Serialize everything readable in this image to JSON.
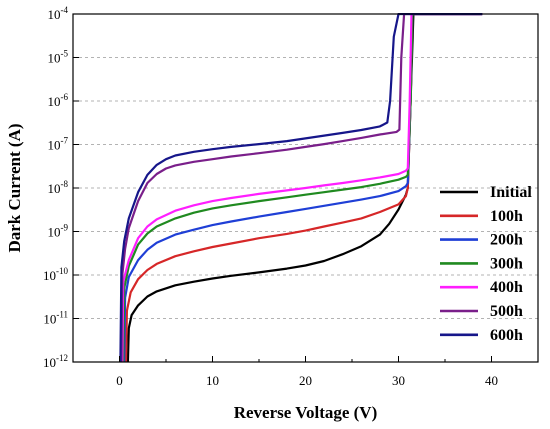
{
  "chart_data": {
    "type": "line",
    "xlabel": "Reverse Voltage (V)",
    "ylabel": "Dark Current (A)",
    "xlim": [
      -5,
      45
    ],
    "ylim": [
      1e-12,
      0.0001
    ],
    "y_scale": "log",
    "x_ticks": [
      0,
      10,
      20,
      30,
      40
    ],
    "x_tick_labels": [
      "0",
      "10",
      "20",
      "30",
      "40"
    ],
    "y_ticks": [
      1e-12,
      1e-11,
      1e-10,
      1e-09,
      1e-08,
      1e-07,
      1e-06,
      1e-05,
      0.0001
    ],
    "y_tick_labels": [
      {
        "base": "10",
        "exp": "-12"
      },
      {
        "base": "10",
        "exp": "-11"
      },
      {
        "base": "10",
        "exp": "-10"
      },
      {
        "base": "10",
        "exp": "-9"
      },
      {
        "base": "10",
        "exp": "-8"
      },
      {
        "base": "10",
        "exp": "-7"
      },
      {
        "base": "10",
        "exp": "-6"
      },
      {
        "base": "10",
        "exp": "-5"
      },
      {
        "base": "10",
        "exp": "-4"
      }
    ],
    "grid": "horizontal dashed",
    "legend_position": "bottom-right",
    "series": [
      {
        "name": "Initial",
        "color": "#000000",
        "points": [
          [
            0.9,
            1e-12
          ],
          [
            1.0,
            6e-12
          ],
          [
            1.3,
            1.2e-11
          ],
          [
            2,
            2e-11
          ],
          [
            3,
            3.2e-11
          ],
          [
            4,
            4.2e-11
          ],
          [
            6,
            5.8e-11
          ],
          [
            8,
            7e-11
          ],
          [
            10,
            8.3e-11
          ],
          [
            12,
            9.6e-11
          ],
          [
            15,
            1.15e-10
          ],
          [
            18,
            1.4e-10
          ],
          [
            20,
            1.65e-10
          ],
          [
            22,
            2.1e-10
          ],
          [
            24,
            3e-10
          ],
          [
            26,
            4.6e-10
          ],
          [
            28,
            8.5e-10
          ],
          [
            29,
            1.5e-09
          ],
          [
            30,
            3.2e-09
          ],
          [
            30.8,
            7e-09
          ],
          [
            31.0,
            1e-08
          ],
          [
            31.3,
            1e-06
          ],
          [
            31.6,
            0.0001
          ],
          [
            39,
            0.0001
          ]
        ]
      },
      {
        "name": "100h",
        "color": "#d62728",
        "points": [
          [
            0.7,
            1e-12
          ],
          [
            0.8,
            1.5e-11
          ],
          [
            1.2,
            4e-11
          ],
          [
            2,
            8e-11
          ],
          [
            3,
            1.3e-10
          ],
          [
            4,
            1.8e-10
          ],
          [
            6,
            2.7e-10
          ],
          [
            8,
            3.5e-10
          ],
          [
            10,
            4.4e-10
          ],
          [
            12,
            5.3e-10
          ],
          [
            15,
            7e-10
          ],
          [
            18,
            8.8e-10
          ],
          [
            20,
            1.05e-09
          ],
          [
            22,
            1.3e-09
          ],
          [
            24,
            1.6e-09
          ],
          [
            26,
            2e-09
          ],
          [
            28,
            2.8e-09
          ],
          [
            30,
            4.2e-09
          ],
          [
            30.8,
            6.5e-09
          ],
          [
            31.0,
            1e-08
          ],
          [
            31.3,
            1e-06
          ],
          [
            31.5,
            0.0001
          ],
          [
            39,
            0.0001
          ]
        ]
      },
      {
        "name": "200h",
        "color": "#1f3fd6",
        "points": [
          [
            0.5,
            1e-12
          ],
          [
            0.6,
            3e-11
          ],
          [
            1,
            9e-11
          ],
          [
            2,
            2.2e-10
          ],
          [
            3,
            3.8e-10
          ],
          [
            4,
            5.5e-10
          ],
          [
            6,
            8.5e-10
          ],
          [
            8,
            1.1e-09
          ],
          [
            10,
            1.4e-09
          ],
          [
            12,
            1.7e-09
          ],
          [
            15,
            2.2e-09
          ],
          [
            18,
            2.8e-09
          ],
          [
            20,
            3.3e-09
          ],
          [
            22,
            3.9e-09
          ],
          [
            24,
            4.6e-09
          ],
          [
            26,
            5.4e-09
          ],
          [
            28,
            6.5e-09
          ],
          [
            30,
            8.5e-09
          ],
          [
            30.8,
            1.1e-08
          ],
          [
            31.0,
            1.3e-08
          ],
          [
            31.3,
            1e-06
          ],
          [
            31.5,
            0.0001
          ],
          [
            39,
            0.0001
          ]
        ]
      },
      {
        "name": "300h",
        "color": "#208a20",
        "points": [
          [
            0.4,
            1e-12
          ],
          [
            0.5,
            5e-11
          ],
          [
            1,
            1.6e-10
          ],
          [
            2,
            5e-10
          ],
          [
            3,
            9e-10
          ],
          [
            4,
            1.3e-09
          ],
          [
            6,
            2e-09
          ],
          [
            8,
            2.7e-09
          ],
          [
            10,
            3.4e-09
          ],
          [
            12,
            4e-09
          ],
          [
            15,
            5e-09
          ],
          [
            18,
            6.1e-09
          ],
          [
            20,
            7e-09
          ],
          [
            22,
            8e-09
          ],
          [
            24,
            9.2e-09
          ],
          [
            26,
            1.05e-08
          ],
          [
            28,
            1.25e-08
          ],
          [
            30,
            1.55e-08
          ],
          [
            30.8,
            1.8e-08
          ],
          [
            31.0,
            2e-08
          ],
          [
            31.3,
            1e-06
          ],
          [
            31.5,
            0.0001
          ],
          [
            39,
            0.0001
          ]
        ]
      },
      {
        "name": "400h",
        "color": "#ff1eff",
        "points": [
          [
            0.3,
            1e-12
          ],
          [
            0.4,
            7e-11
          ],
          [
            1,
            2.2e-10
          ],
          [
            2,
            7e-10
          ],
          [
            3,
            1.3e-09
          ],
          [
            4,
            1.9e-09
          ],
          [
            6,
            3e-09
          ],
          [
            8,
            4e-09
          ],
          [
            10,
            5e-09
          ],
          [
            12,
            5.9e-09
          ],
          [
            15,
            7.3e-09
          ],
          [
            18,
            8.8e-09
          ],
          [
            20,
            1e-08
          ],
          [
            22,
            1.15e-08
          ],
          [
            24,
            1.3e-08
          ],
          [
            26,
            1.5e-08
          ],
          [
            28,
            1.75e-08
          ],
          [
            30,
            2.1e-08
          ],
          [
            30.8,
            2.5e-08
          ],
          [
            31.0,
            2.8e-08
          ],
          [
            31.2,
            1e-06
          ],
          [
            31.4,
            0.0001
          ],
          [
            39,
            0.0001
          ]
        ]
      },
      {
        "name": "500h",
        "color": "#7a1f8a",
        "points": [
          [
            0.2,
            1e-12
          ],
          [
            0.3,
            1e-10
          ],
          [
            0.6,
            4e-10
          ],
          [
            1,
            1.2e-09
          ],
          [
            2,
            5e-09
          ],
          [
            3,
            1.3e-08
          ],
          [
            4,
            2.1e-08
          ],
          [
            5,
            2.8e-08
          ],
          [
            6,
            3.3e-08
          ],
          [
            8,
            4e-08
          ],
          [
            10,
            4.6e-08
          ],
          [
            12,
            5.3e-08
          ],
          [
            15,
            6.3e-08
          ],
          [
            18,
            7.6e-08
          ],
          [
            20,
            8.8e-08
          ],
          [
            22,
            1.02e-07
          ],
          [
            24,
            1.2e-07
          ],
          [
            26,
            1.42e-07
          ],
          [
            28,
            1.7e-07
          ],
          [
            29.8,
            1.95e-07
          ],
          [
            30.1,
            2.2e-07
          ],
          [
            30.3,
            1e-05
          ],
          [
            30.6,
            0.0001
          ],
          [
            39,
            0.0001
          ]
        ]
      },
      {
        "name": "600h",
        "color": "#16168a",
        "points": [
          [
            0.1,
            1e-12
          ],
          [
            0.2,
            1.5e-10
          ],
          [
            0.5,
            6e-10
          ],
          [
            1,
            2e-09
          ],
          [
            2,
            8e-09
          ],
          [
            3,
            2e-08
          ],
          [
            4,
            3.4e-08
          ],
          [
            5,
            4.6e-08
          ],
          [
            6,
            5.6e-08
          ],
          [
            8,
            6.8e-08
          ],
          [
            10,
            7.8e-08
          ],
          [
            12,
            8.8e-08
          ],
          [
            15,
            1.02e-07
          ],
          [
            18,
            1.2e-07
          ],
          [
            20,
            1.38e-07
          ],
          [
            22,
            1.6e-07
          ],
          [
            24,
            1.85e-07
          ],
          [
            26,
            2.15e-07
          ],
          [
            28,
            2.6e-07
          ],
          [
            28.8,
            3.2e-07
          ],
          [
            29.1,
            1e-06
          ],
          [
            29.5,
            3e-05
          ],
          [
            30,
            0.0001
          ],
          [
            39,
            0.0001
          ]
        ]
      }
    ]
  }
}
